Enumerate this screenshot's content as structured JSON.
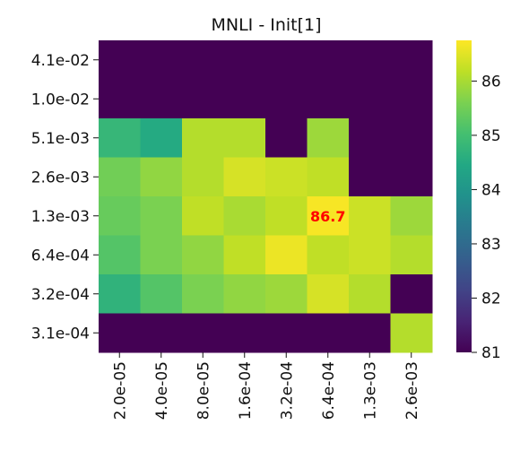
{
  "chart_data": {
    "type": "heatmap",
    "title": "MNLI - Init[1]",
    "xlabel": "",
    "ylabel": "",
    "x_categories": [
      "2.0e-05",
      "4.0e-05",
      "8.0e-05",
      "1.6e-04",
      "3.2e-04",
      "6.4e-04",
      "1.3e-03",
      "2.6e-03"
    ],
    "y_categories": [
      "4.1e-02",
      "1.0e-02",
      "5.1e-03",
      "2.6e-03",
      "1.3e-03",
      "6.4e-04",
      "3.2e-04",
      "3.1e-04"
    ],
    "values": [
      [
        81.0,
        81.0,
        81.0,
        81.0,
        81.0,
        81.0,
        81.0,
        81.0
      ],
      [
        81.0,
        81.0,
        81.0,
        81.0,
        81.0,
        81.0,
        81.0,
        81.0
      ],
      [
        84.8,
        84.5,
        86.1,
        86.1,
        81.0,
        85.9,
        81.0,
        81.0
      ],
      [
        85.5,
        85.8,
        86.1,
        86.4,
        86.3,
        86.2,
        81.0,
        81.0
      ],
      [
        85.4,
        85.6,
        86.2,
        86.0,
        86.2,
        86.7,
        86.3,
        85.9
      ],
      [
        85.2,
        85.6,
        85.8,
        86.2,
        86.6,
        86.2,
        86.3,
        86.1
      ],
      [
        84.7,
        85.2,
        85.6,
        85.8,
        85.9,
        86.4,
        86.1,
        81.0
      ],
      [
        81.0,
        81.0,
        81.0,
        81.0,
        81.0,
        81.0,
        81.0,
        86.1
      ]
    ],
    "colorbar": {
      "min": 81.0,
      "max": 86.75,
      "ticks": [
        81,
        82,
        83,
        84,
        85,
        86
      ],
      "colormap": "viridis"
    },
    "annotation": {
      "row": 4,
      "col": 5,
      "text": "86.7",
      "color": "#ff0000"
    }
  }
}
